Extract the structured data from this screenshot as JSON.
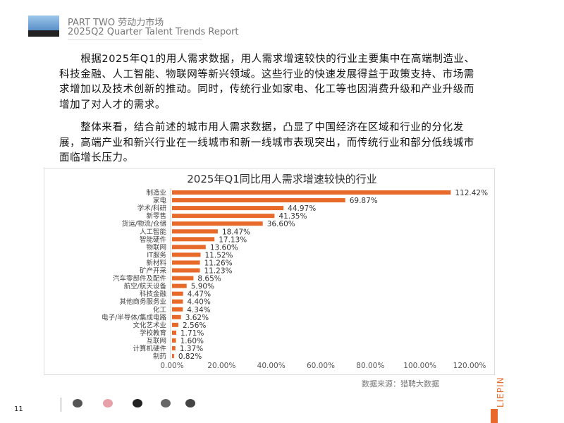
{
  "header": {
    "line1": "PART TWO 劳动力市场",
    "line2": "2025Q2 Quarter Talent Trends Report"
  },
  "paragraphs": [
    "　　根据2025年Q1的用人需求数据，用人需求增速较快的行业主要集中在高端制造业、科技金融、人工智能、物联网等新兴领域。这些行业的快速发展得益于政策支持、市场需求增加以及技术创新的推动。同时，传统行业如家电、化工等也因消费升级和产业升级而增加了对人才的需求。",
    "　　整体来看，结合前述的城市用人需求数据，凸显了中国经济在区域和行业的分化发展，高端产业和新兴行业在一线城市和新一线城市表现突出，而传统行业和部分低线城市面临增长压力。"
  ],
  "chart_data": {
    "type": "bar",
    "orientation": "horizontal",
    "title": "2025年Q1同比用人需求增速较快的行业",
    "categories": [
      "制造业",
      "家电",
      "学术/科研",
      "新零售",
      "货运/物流/仓储",
      "人工智能",
      "智能硬件",
      "物联网",
      "IT服务",
      "新材料",
      "矿产开采",
      "汽车零部件及配件",
      "航空/航天设备",
      "科技金融",
      "其他商务服务业",
      "化工",
      "电子/半导体/集成电路",
      "文化艺术业",
      "学校教育",
      "互联网",
      "计算机硬件",
      "制药"
    ],
    "values": [
      112.42,
      69.87,
      44.97,
      41.35,
      36.6,
      18.47,
      17.13,
      13.6,
      11.52,
      11.26,
      11.23,
      8.65,
      5.9,
      4.47,
      4.4,
      4.34,
      3.62,
      2.56,
      1.71,
      1.6,
      1.37,
      0.82
    ],
    "data_labels": [
      "112.42%",
      "69.87%",
      "44.97%",
      "41.35%",
      "36.60%",
      "18.47%",
      "17.13%",
      "13.60%",
      "11.52%",
      "11.26%",
      "11.23%",
      "8.65%",
      "5.90%",
      "4.47%",
      "4.40%",
      "4.34%",
      "3.62%",
      "2.56%",
      "1.71%",
      "1.60%",
      "1.37%",
      "0.82%"
    ],
    "xlim": [
      0,
      120
    ],
    "xticks": [
      "0.00%",
      "20.00%",
      "40.00%",
      "60.00%",
      "80.00%",
      "100.00%",
      "120.00%"
    ],
    "grid": false,
    "bar_color": "#e86a2a"
  },
  "footer": {
    "source": "数据来源：猎聘大数据",
    "page": "11",
    "brand": "LIEPIN",
    "brand_color": "#e86a2a"
  }
}
